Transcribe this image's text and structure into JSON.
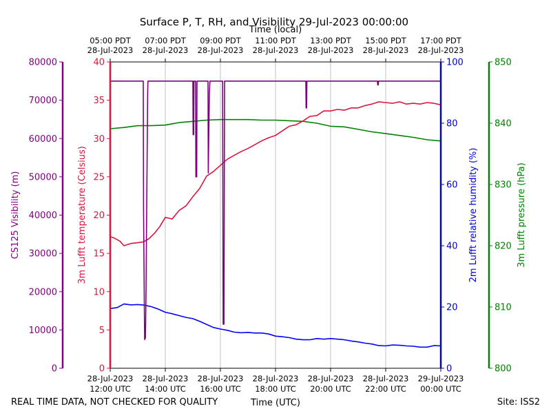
{
  "chart_data": {
    "type": "line",
    "title": "Surface P, T, RH, and Visibility 29-Jul-2023 00:00:00",
    "top_xlabel": "Time (local)",
    "xlabel": "Time (UTC)",
    "footer_left": "REAL TIME DATA, NOT CHECKED FOR QUALITY",
    "footer_right": "Site: ISS2",
    "xlim": [
      12,
      24
    ],
    "bottom_ticks": [
      {
        "x": 12,
        "line1": "28-Jul-2023",
        "line2": "12:00 UTC"
      },
      {
        "x": 14,
        "line1": "28-Jul-2023",
        "line2": "14:00 UTC"
      },
      {
        "x": 16,
        "line1": "28-Jul-2023",
        "line2": "16:00 UTC"
      },
      {
        "x": 18,
        "line1": "28-Jul-2023",
        "line2": "18:00 UTC"
      },
      {
        "x": 20,
        "line1": "28-Jul-2023",
        "line2": "20:00 UTC"
      },
      {
        "x": 22,
        "line1": "28-Jul-2023",
        "line2": "22:00 UTC"
      },
      {
        "x": 24,
        "line1": "29-Jul-2023",
        "line2": "00:00 UTC"
      }
    ],
    "top_ticks": [
      {
        "x": 12,
        "line1": "05:00 PDT",
        "line2": "28-Jul-2023"
      },
      {
        "x": 14,
        "line1": "07:00 PDT",
        "line2": "28-Jul-2023"
      },
      {
        "x": 16,
        "line1": "09:00 PDT",
        "line2": "28-Jul-2023"
      },
      {
        "x": 18,
        "line1": "11:00 PDT",
        "line2": "28-Jul-2023"
      },
      {
        "x": 20,
        "line1": "13:00 PDT",
        "line2": "28-Jul-2023"
      },
      {
        "x": 22,
        "line1": "15:00 PDT",
        "line2": "28-Jul-2023"
      },
      {
        "x": 24,
        "line1": "17:00 PDT",
        "line2": "28-Jul-2023"
      }
    ],
    "grid": true,
    "axes": [
      {
        "id": "visibility",
        "label": "CS125 Visibility (m)",
        "color": "#800080",
        "ylim": [
          0,
          80000
        ],
        "ticks": [
          0,
          10000,
          20000,
          30000,
          40000,
          50000,
          60000,
          70000,
          80000
        ]
      },
      {
        "id": "temperature",
        "label": "3m Lufft temperature (Celsius)",
        "color": "#dc143c",
        "ylim": [
          0,
          40
        ],
        "ticks": [
          0,
          5,
          10,
          15,
          20,
          25,
          30,
          35,
          40
        ]
      },
      {
        "id": "humidity",
        "label": "2m Lufft relative humidity (%)",
        "color": "#0000cd",
        "ylim": [
          0,
          100
        ],
        "ticks": [
          0,
          20,
          40,
          60,
          80,
          100
        ]
      },
      {
        "id": "pressure",
        "label": "3m Lufft pressure (hPa)",
        "color": "#008000",
        "ylim": [
          800,
          850
        ],
        "ticks": [
          800,
          810,
          820,
          830,
          840,
          850
        ]
      }
    ],
    "series": [
      {
        "axis": "pressure",
        "color": "#008000",
        "x": [
          12.0,
          12.5,
          13.0,
          13.5,
          14.0,
          14.5,
          15.0,
          15.5,
          16.0,
          16.5,
          17.0,
          17.5,
          18.0,
          18.5,
          19.0,
          19.5,
          20.0,
          20.5,
          21.0,
          21.5,
          22.0,
          22.5,
          23.0,
          23.5,
          24.0
        ],
        "values": [
          839.1,
          839.3,
          839.6,
          839.6,
          839.7,
          840.1,
          840.3,
          840.5,
          840.6,
          840.6,
          840.6,
          840.5,
          840.5,
          840.4,
          840.3,
          840.0,
          839.5,
          839.4,
          839.0,
          838.6,
          838.3,
          838.0,
          837.7,
          837.3,
          837.1
        ]
      },
      {
        "axis": "temperature",
        "color": "#dc143c",
        "x": [
          12.0,
          12.15,
          12.35,
          12.5,
          12.75,
          13.0,
          13.2,
          13.4,
          13.6,
          13.8,
          14.0,
          14.25,
          14.5,
          14.75,
          15.0,
          15.25,
          15.5,
          15.75,
          16.0,
          16.25,
          16.5,
          16.75,
          17.0,
          17.25,
          17.5,
          17.75,
          18.0,
          18.25,
          18.5,
          18.75,
          19.0,
          19.25,
          19.5,
          19.75,
          20.0,
          20.25,
          20.5,
          20.75,
          21.0,
          21.25,
          21.5,
          21.75,
          22.0,
          22.25,
          22.5,
          22.75,
          23.0,
          23.25,
          23.5,
          23.75,
          24.0
        ],
        "values": [
          17.2,
          17.0,
          16.6,
          16.0,
          16.3,
          16.4,
          16.5,
          16.9,
          17.6,
          18.5,
          19.7,
          19.5,
          20.6,
          21.2,
          22.4,
          23.5,
          25.1,
          25.7,
          26.5,
          27.3,
          27.8,
          28.3,
          28.7,
          29.2,
          29.7,
          30.1,
          30.4,
          31.0,
          31.6,
          31.8,
          32.3,
          32.9,
          33.0,
          33.6,
          33.6,
          33.8,
          33.7,
          34.0,
          34.0,
          34.3,
          34.5,
          34.8,
          34.7,
          34.6,
          34.8,
          34.5,
          34.6,
          34.5,
          34.7,
          34.6,
          34.4
        ]
      },
      {
        "axis": "humidity",
        "color": "#0000ff",
        "x": [
          12.0,
          12.25,
          12.5,
          12.75,
          13.0,
          13.25,
          13.5,
          13.75,
          14.0,
          14.25,
          14.5,
          14.75,
          15.0,
          15.25,
          15.5,
          15.75,
          16.0,
          16.25,
          16.5,
          16.75,
          17.0,
          17.25,
          17.5,
          17.75,
          18.0,
          18.25,
          18.5,
          18.75,
          19.0,
          19.25,
          19.5,
          19.75,
          20.0,
          20.25,
          20.5,
          20.75,
          21.0,
          21.25,
          21.5,
          21.75,
          22.0,
          22.25,
          22.5,
          22.75,
          23.0,
          23.25,
          23.5,
          23.75,
          24.0
        ],
        "values": [
          19.5,
          19.8,
          21.0,
          20.7,
          20.8,
          20.6,
          20.1,
          19.3,
          18.3,
          17.8,
          17.2,
          16.6,
          16.2,
          15.3,
          14.3,
          13.3,
          12.8,
          12.4,
          11.8,
          11.6,
          11.7,
          11.5,
          11.5,
          11.2,
          10.5,
          10.3,
          10.0,
          9.5,
          9.3,
          9.3,
          9.7,
          9.5,
          9.7,
          9.5,
          9.3,
          8.9,
          8.6,
          8.2,
          7.9,
          7.4,
          7.3,
          7.6,
          7.5,
          7.3,
          7.2,
          6.9,
          6.9,
          7.4,
          7.3
        ]
      },
      {
        "axis": "visibility",
        "color": "#800080",
        "x": [
          12.0,
          13.2,
          13.21,
          13.24,
          13.25,
          13.28,
          13.3,
          13.36,
          13.37,
          14.0,
          15.0,
          15.01,
          15.03,
          15.04,
          15.1,
          15.11,
          15.14,
          15.15,
          15.55,
          15.56,
          15.6,
          15.62,
          15.63,
          16.0,
          16.08,
          16.1,
          16.13,
          16.15,
          18.0,
          19.1,
          19.11,
          19.13,
          19.14,
          21.7,
          21.71,
          21.73,
          21.74,
          24.0
        ],
        "values": [
          75000,
          75000,
          42000,
          15000,
          7500,
          8000,
          20000,
          72000,
          75000,
          75000,
          75000,
          61000,
          61000,
          75000,
          75000,
          50000,
          50000,
          75000,
          75000,
          51000,
          72000,
          75000,
          75000,
          75000,
          75000,
          11500,
          11500,
          75000,
          75000,
          75000,
          68000,
          68000,
          75000,
          75000,
          74000,
          74000,
          75000,
          75000
        ]
      }
    ]
  }
}
